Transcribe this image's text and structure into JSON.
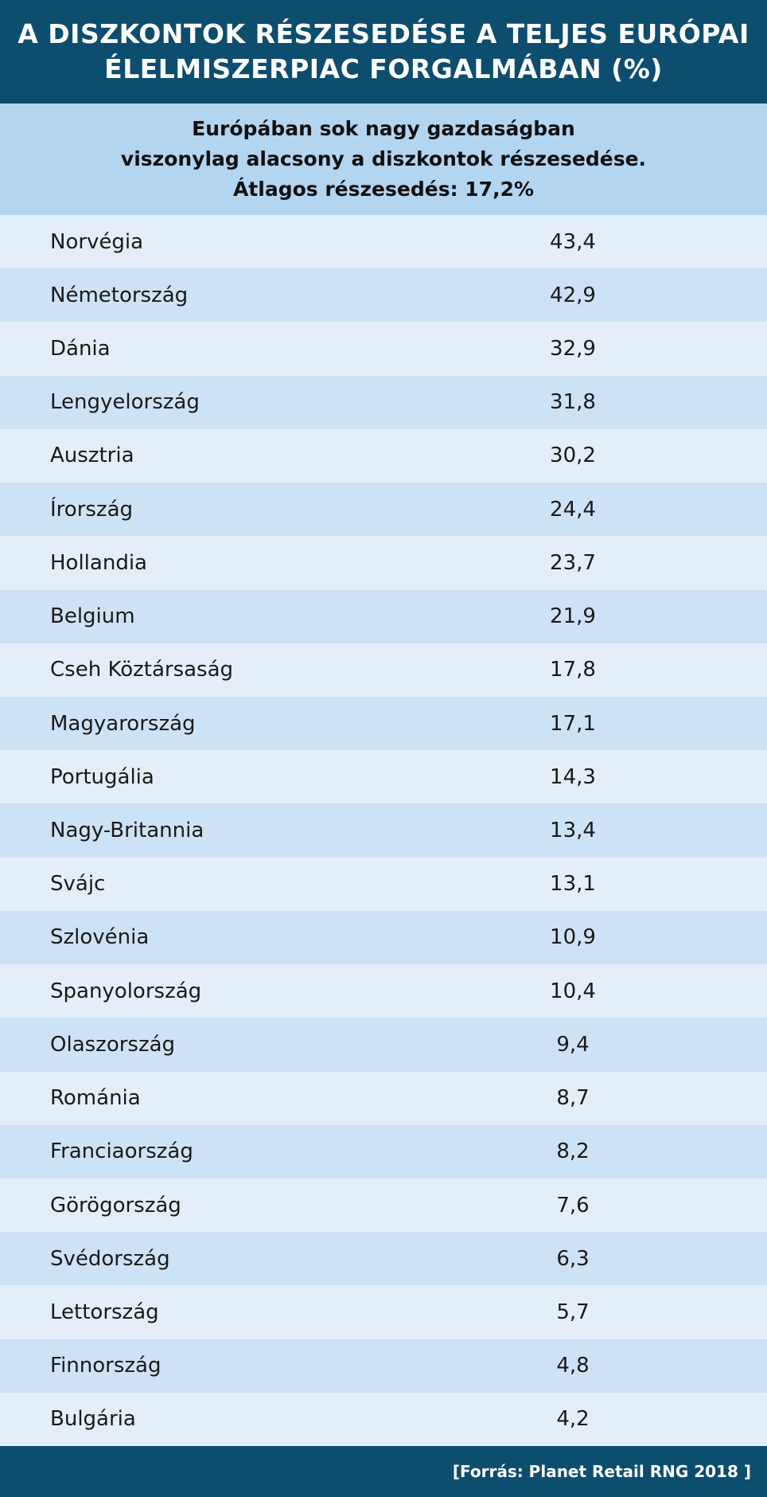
{
  "header": {
    "title_lines": [
      "A DISZKONTOK RÉSZESEDÉSE A TELJES EURÓPAI",
      "ÉLELMISZERPIAC FORGALMÁBAN (%)"
    ]
  },
  "subheader": {
    "lines": [
      "Európában sok nagy gazdaságban",
      "viszonylag alacsony a diszkontok részesedése.",
      "Átlagos részesedés: 17,2%"
    ]
  },
  "table": {
    "rows": [
      [
        "Norvégia",
        "43,4"
      ],
      [
        "Németország",
        "42,9"
      ],
      [
        "Dánia",
        "32,9"
      ],
      [
        "Lengyelország",
        "31,8"
      ],
      [
        "Ausztria",
        "30,2"
      ],
      [
        "Írország",
        "24,4"
      ],
      [
        "Hollandia",
        "23,7"
      ],
      [
        "Belgium",
        "21,9"
      ],
      [
        "Cseh Köztársaság",
        "17,8"
      ],
      [
        "Magyarország",
        "17,1"
      ],
      [
        "Portugália",
        "14,3"
      ],
      [
        "Nagy-Britannia",
        "13,4"
      ],
      [
        "Svájc",
        "13,1"
      ],
      [
        "Szlovénia",
        "10,9"
      ],
      [
        "Spanyolország",
        "10,4"
      ],
      [
        "Olaszország",
        "9,4"
      ],
      [
        "Románia",
        "8,7"
      ],
      [
        "Franciaország",
        "8,2"
      ],
      [
        "Görögország",
        "7,6"
      ],
      [
        "Svédország",
        "6,3"
      ],
      [
        "Lettország",
        "5,7"
      ],
      [
        "Finnország",
        "4,8"
      ],
      [
        "Bulgária",
        "4,2"
      ]
    ]
  },
  "footer": {
    "source": "[Forrás: Planet Retail RNG 2018 ]"
  }
}
